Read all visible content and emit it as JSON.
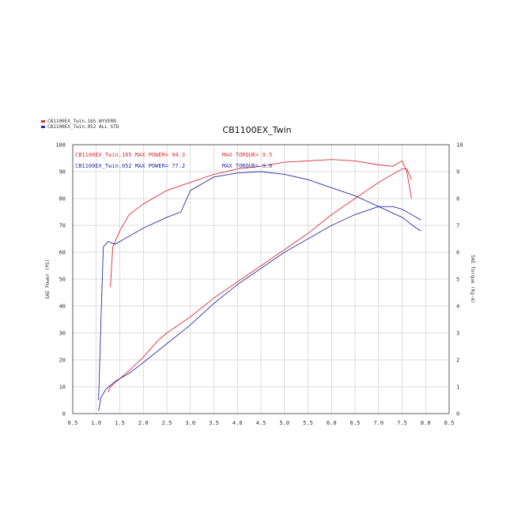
{
  "chart_data": {
    "type": "line",
    "title": "CB1100EX_Twin",
    "xlabel": "",
    "ylabel": "SAE Power (PS)",
    "y2label": "SAE Torque (Kg-m)",
    "xlim": [
      0.5,
      8.5
    ],
    "ylim": [
      0,
      100
    ],
    "y2lim": [
      0,
      10
    ],
    "x_ticks": [
      "0.5",
      "1.0",
      "1.5",
      "2.0",
      "2.5",
      "3.0",
      "3.5",
      "4.0",
      "4.5",
      "5.0",
      "5.5",
      "6.0",
      "6.5",
      "7.0",
      "7.5",
      "8.0",
      "8.5"
    ],
    "y_ticks": [
      "0",
      "10",
      "20",
      "30",
      "40",
      "50",
      "60",
      "70",
      "80",
      "90",
      "100"
    ],
    "y2_ticks": [
      "0",
      "1",
      "2",
      "3",
      "4",
      "5",
      "6",
      "7",
      "8",
      "9",
      "10"
    ],
    "grid": true,
    "legend": [
      {
        "label": "CB1100EX_Twin.165  WYVERN",
        "color": "#d9303a"
      },
      {
        "label": "CB1100EX_Twin.052  ALL STD",
        "color": "#2a2fa0"
      }
    ],
    "annotations": [
      {
        "text": "CB1100EX_Twin.165  MAX POWER= 94.3",
        "color": "#d9303a"
      },
      {
        "text": "MAX TORQUE= 9.5",
        "color": "#d9303a"
      },
      {
        "text": "CB1100EX_Twin.052  MAX POWER= 77.2",
        "color": "#2a2fa0"
      },
      {
        "text": "MAX TORQUE= 9.0",
        "color": "#2a2fa0"
      }
    ],
    "series": [
      {
        "name": "CB1100EX_Twin.165 WYVERN",
        "kind": "power",
        "axis": "left",
        "color": "#d9303a",
        "x": [
          1.25,
          1.3,
          1.5,
          1.7,
          2.0,
          2.3,
          2.5,
          3.0,
          3.5,
          4.0,
          4.5,
          5.0,
          5.5,
          6.0,
          6.5,
          7.0,
          7.3,
          7.5,
          7.6,
          7.7
        ],
        "values": [
          8,
          10,
          13,
          16,
          21,
          27,
          30,
          36,
          43,
          49,
          55,
          61,
          67,
          74,
          80,
          86,
          89,
          91,
          91,
          87
        ]
      },
      {
        "name": "CB1100EX_Twin.052 ALL STD",
        "kind": "power",
        "axis": "left",
        "color": "#2a2fa0",
        "x": [
          1.05,
          1.1,
          1.2,
          1.4,
          1.7,
          2.0,
          2.5,
          3.0,
          3.5,
          4.0,
          4.5,
          5.0,
          5.5,
          6.0,
          6.5,
          7.0,
          7.3,
          7.5,
          7.7,
          7.9
        ],
        "values": [
          1,
          6,
          9,
          12,
          15,
          19,
          26,
          33,
          41,
          48,
          54,
          60,
          65,
          70,
          74,
          77,
          77,
          76,
          74,
          72
        ]
      },
      {
        "name": "CB1100EX_Twin.165 WYVERN",
        "kind": "torque",
        "axis": "right",
        "color": "#d9303a",
        "x": [
          1.3,
          1.35,
          1.5,
          1.7,
          2.0,
          2.5,
          3.0,
          3.5,
          4.0,
          4.5,
          5.0,
          5.5,
          6.0,
          6.5,
          7.0,
          7.3,
          7.5,
          7.6,
          7.7
        ],
        "values": [
          4.7,
          6.2,
          6.8,
          7.4,
          7.8,
          8.3,
          8.6,
          8.9,
          9.1,
          9.2,
          9.35,
          9.4,
          9.45,
          9.4,
          9.25,
          9.2,
          9.4,
          9.0,
          8.0
        ]
      },
      {
        "name": "CB1100EX_Twin.052 ALL STD",
        "kind": "torque",
        "axis": "right",
        "color": "#2a2fa0",
        "x": [
          1.05,
          1.1,
          1.15,
          1.25,
          1.4,
          1.6,
          2.0,
          2.5,
          2.8,
          3.0,
          3.5,
          4.0,
          4.5,
          5.0,
          5.5,
          6.0,
          6.5,
          7.0,
          7.5,
          7.8,
          7.9
        ],
        "values": [
          0.5,
          3.5,
          6.2,
          6.4,
          6.3,
          6.5,
          6.9,
          7.3,
          7.5,
          8.3,
          8.8,
          8.95,
          9.0,
          8.9,
          8.7,
          8.4,
          8.1,
          7.7,
          7.3,
          6.9,
          6.8
        ]
      }
    ]
  }
}
